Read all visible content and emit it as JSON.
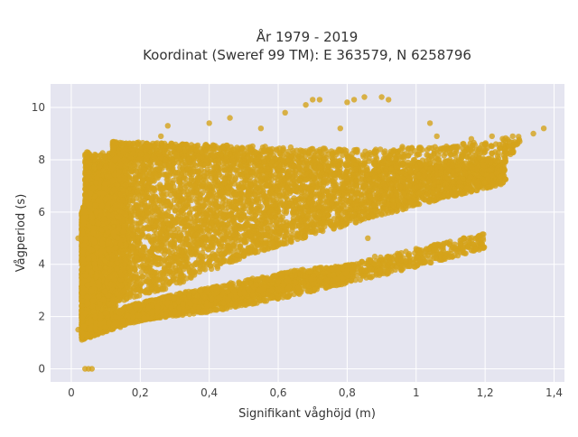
{
  "chart_data": {
    "type": "scatter",
    "title_lines": [
      "År 1979 - 2019",
      "Koordinat (Sweref 99 TM): E 363579, N 6258796"
    ],
    "xlabel": "Signifikant våghöjd (m)",
    "ylabel": "Vågperiod (s)",
    "xlim": [
      -0.06,
      1.43
    ],
    "ylim": [
      -0.5,
      10.9
    ],
    "x_ticks": [
      0,
      0.2,
      0.4,
      0.6,
      0.8,
      1,
      1.2,
      1.4
    ],
    "x_tick_labels": [
      "0",
      "0,2",
      "0,4",
      "0,6",
      "0,8",
      "1",
      "1,2",
      "1,4"
    ],
    "y_ticks": [
      0,
      2,
      4,
      6,
      8,
      10
    ],
    "y_tick_labels": [
      "0",
      "2",
      "4",
      "6",
      "8",
      "10"
    ],
    "grid": true,
    "legend": "none",
    "colors": {
      "marker": "#d4a21a",
      "plot_bg": "#e5e5f0",
      "grid": "#ffffff"
    },
    "series": [
      {
        "marker_opacity": 0.8,
        "points": [
          [
            0.04,
            0.0
          ],
          [
            0.05,
            0.0
          ],
          [
            0.06,
            0.0
          ],
          [
            0.02,
            5.0
          ],
          [
            0.02,
            1.5
          ],
          [
            0.03,
            1.2
          ],
          [
            0.03,
            2.6
          ],
          [
            0.04,
            3.0
          ],
          [
            0.05,
            4.2
          ],
          [
            0.06,
            1.3
          ],
          [
            0.07,
            2.0
          ],
          [
            0.08,
            3.2
          ],
          [
            0.09,
            4.8
          ],
          [
            0.1,
            6.5
          ],
          [
            0.1,
            1.6
          ],
          [
            0.12,
            7.2
          ],
          [
            0.13,
            2.0
          ],
          [
            0.15,
            8.4
          ],
          [
            0.18,
            8.6
          ],
          [
            0.2,
            8.2
          ],
          [
            0.22,
            6.0
          ],
          [
            0.24,
            3.4
          ],
          [
            0.26,
            8.9
          ],
          [
            0.28,
            9.3
          ],
          [
            0.3,
            2.2
          ],
          [
            0.32,
            4.5
          ],
          [
            0.34,
            8.0
          ],
          [
            0.36,
            2.6
          ],
          [
            0.4,
            9.4
          ],
          [
            0.42,
            3.1
          ],
          [
            0.45,
            7.6
          ],
          [
            0.46,
            9.6
          ],
          [
            0.5,
            2.9
          ],
          [
            0.52,
            5.2
          ],
          [
            0.55,
            9.2
          ],
          [
            0.58,
            3.0
          ],
          [
            0.6,
            6.8
          ],
          [
            0.62,
            9.8
          ],
          [
            0.64,
            7.1
          ],
          [
            0.65,
            3.3
          ],
          [
            0.68,
            10.1
          ],
          [
            0.7,
            10.3
          ],
          [
            0.72,
            10.3
          ],
          [
            0.74,
            6.4
          ],
          [
            0.76,
            3.6
          ],
          [
            0.78,
            9.2
          ],
          [
            0.8,
            10.2
          ],
          [
            0.82,
            10.3
          ],
          [
            0.85,
            10.4
          ],
          [
            0.86,
            5.0
          ],
          [
            0.88,
            4.3
          ],
          [
            0.9,
            10.4
          ],
          [
            0.92,
            10.3
          ],
          [
            0.94,
            6.8
          ],
          [
            0.96,
            8.5
          ],
          [
            0.98,
            7.0
          ],
          [
            1.0,
            4.6
          ],
          [
            1.02,
            7.3
          ],
          [
            1.04,
            9.4
          ],
          [
            1.06,
            8.9
          ],
          [
            1.1,
            8.4
          ],
          [
            1.12,
            7.6
          ],
          [
            1.16,
            8.8
          ],
          [
            1.2,
            8.3
          ],
          [
            1.22,
            8.9
          ],
          [
            1.25,
            8.6
          ],
          [
            1.28,
            8.9
          ],
          [
            1.3,
            8.7
          ],
          [
            1.34,
            9.0
          ],
          [
            1.37,
            9.2
          ]
        ],
        "density_bands": [
          {
            "name": "main-cluster",
            "x_from": 0.04,
            "x_to": 1.26,
            "y_low": [
              2.2,
              3.1,
              4.4,
              5.4,
              6.3,
              7.1
            ],
            "y_high": [
              8.3,
              8.2,
              8.0,
              7.9,
              7.9,
              8.1
            ],
            "count": 5600
          },
          {
            "name": "swell-band",
            "x_from": 0.22,
            "x_to": 1.2,
            "y_low": [
              1.9,
              2.2,
              2.7,
              3.3,
              3.9,
              4.6
            ],
            "y_high": [
              2.4,
              2.9,
              3.4,
              4.0,
              4.6,
              5.2
            ],
            "count": 1300
          },
          {
            "name": "low-band",
            "x_from": 0.03,
            "x_to": 0.82,
            "y_low": [
              1.1,
              1.8,
              2.2,
              2.7,
              3.1,
              3.5
            ],
            "y_high": [
              1.8,
              2.5,
              3.0,
              3.4,
              3.8,
              4.0
            ],
            "count": 1800
          },
          {
            "name": "upper-band",
            "x_from": 0.12,
            "x_to": 1.3,
            "y_low": [
              8.0,
              8.0,
              7.9,
              7.8,
              7.9,
              8.2
            ],
            "y_high": [
              8.7,
              8.6,
              8.5,
              8.4,
              8.5,
              8.9
            ],
            "count": 900
          },
          {
            "name": "left-column",
            "x_from": 0.03,
            "x_to": 0.16,
            "y_low": [
              1.2,
              1.3,
              1.5,
              2.0,
              2.5,
              3.0
            ],
            "y_high": [
              6.0,
              7.2,
              7.6,
              7.8,
              8.2,
              8.4
            ],
            "count": 2200
          }
        ]
      }
    ]
  }
}
